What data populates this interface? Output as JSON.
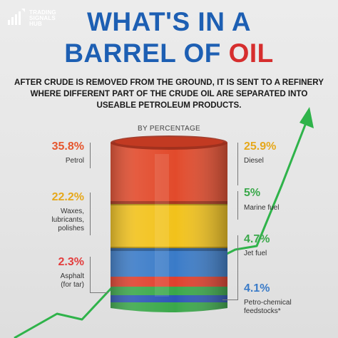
{
  "logo": {
    "line1": "TRADING",
    "line2": "SIGNALS",
    "line3": "HUB"
  },
  "title": {
    "line1": "WHAT'S IN A",
    "line2_prefix": "BARREL OF ",
    "line2_highlight": "OIL"
  },
  "subtitle": "AFTER CRUDE IS REMOVED FROM THE GROUND, IT IS SENT TO A REFINERY WHERE DIFFERENT PART OF THE CRUDE OIL ARE SEPARATED INTO USEABLE PETROLEUM PRODUCTS.",
  "by_percentage": "BY PERCENTAGE",
  "products": {
    "petrol": {
      "value": "35.8%",
      "label": "Petrol"
    },
    "waxes": {
      "value": "22.2%",
      "label1": "Waxes,",
      "label2": "lubricants,",
      "label3": "polishes"
    },
    "asphalt": {
      "value": "2.3%",
      "label1": "Asphalt",
      "label2": "(for tar)"
    },
    "diesel": {
      "value": "25.9%",
      "label": "Diesel"
    },
    "marine": {
      "value": "5%",
      "label": "Marine fuel"
    },
    "jet": {
      "value": "4.7%",
      "label": "Jet fuel"
    },
    "petrochem": {
      "value": "4.1%",
      "label1": "Petro-chemical",
      "label2": "feedstocks*"
    }
  },
  "colors": {
    "title_blue": "#1d5fb3",
    "oil_red": "#d62e2e",
    "orange": "#e6562d",
    "yellow": "#f2c21b",
    "blue": "#3a7bc8",
    "green": "#3aa84a",
    "red_pct": "#e33d3d"
  }
}
